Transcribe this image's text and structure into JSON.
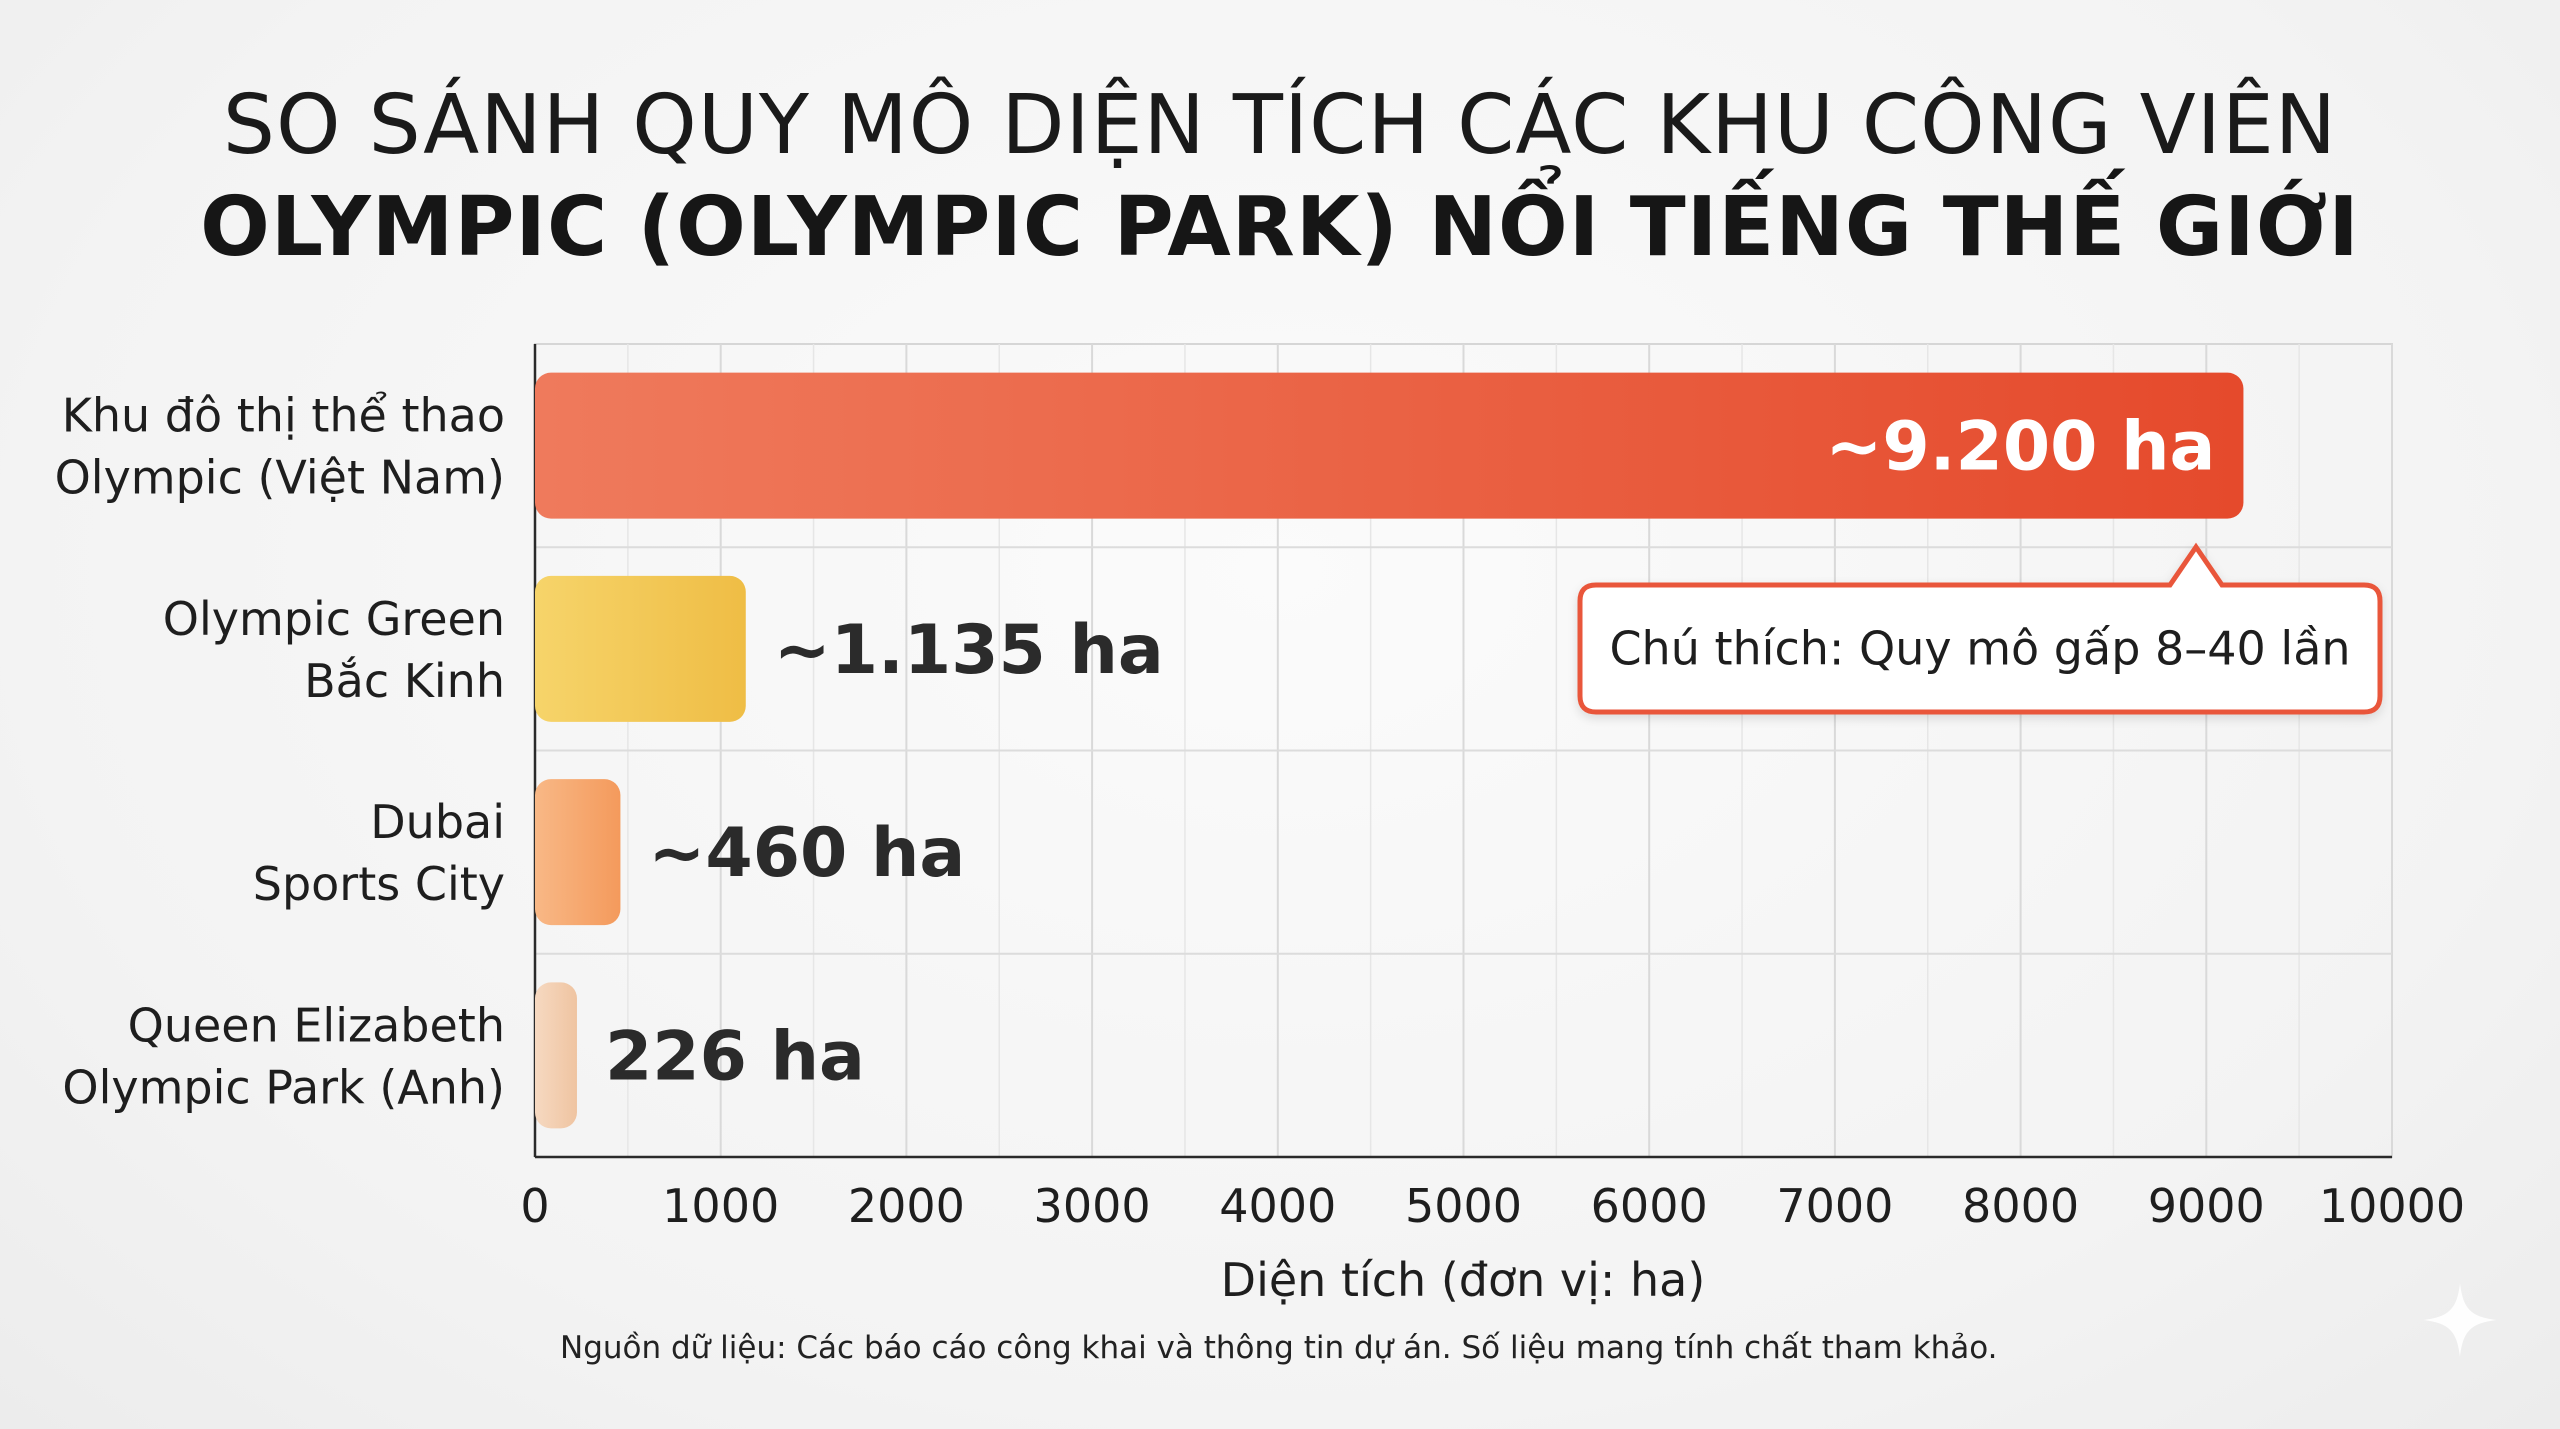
{
  "title": {
    "line1": "SO SÁNH QUY MÔ DIỆN TÍCH CÁC KHU CÔNG VIÊN",
    "line2": "OLYMPIC (OLYMPIC PARK) NỔI TIẾNG THẾ GIỚI"
  },
  "chart_data": {
    "type": "bar",
    "orientation": "horizontal",
    "categories": [
      [
        "Khu đô thị thể thao",
        "Olympic (Việt Nam)"
      ],
      [
        "Olympic Green",
        "Bắc Kinh"
      ],
      [
        "Dubai",
        "Sports City"
      ],
      [
        "Queen Elizabeth",
        "Olympic Park (Anh)"
      ]
    ],
    "values": [
      9200,
      1135,
      460,
      226
    ],
    "value_labels": [
      "~9.200 ha",
      "~1.135 ha",
      "~460 ha",
      "226 ha"
    ],
    "colors": [
      "#ea5a3a",
      "#f2c553",
      "#f6a76c",
      "#f3c9a8"
    ],
    "xlabel": "Diện tích (đơn vị: ha)",
    "xlim": [
      0,
      10000
    ],
    "xticks": [
      0,
      1000,
      2000,
      3000,
      4000,
      5000,
      6000,
      7000,
      8000,
      9000,
      10000
    ],
    "grid": true,
    "annotation": "Chú thích: Quy mô gấp 8–40 lần"
  },
  "source_note": "Nguồn dữ liệu: Các báo cáo công khai và thông tin dự án. Số liệu mang tính chất tham khảo.",
  "icons": {
    "watermark": "sparkle-icon"
  }
}
